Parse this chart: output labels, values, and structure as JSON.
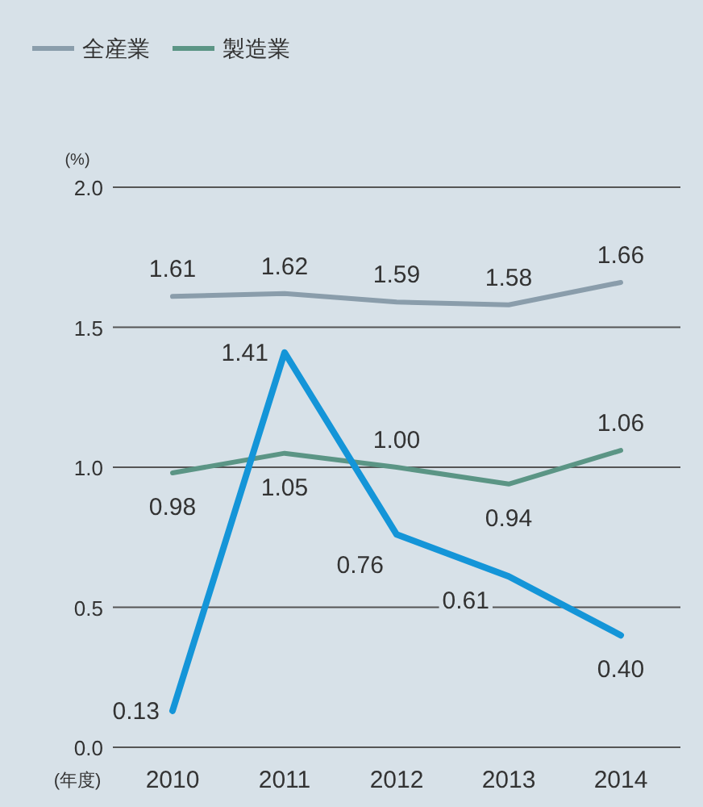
{
  "chart_data": {
    "type": "line",
    "ylabel": "(%)",
    "xlabel": "(年度)",
    "categories": [
      "2010",
      "2011",
      "2012",
      "2013",
      "2014"
    ],
    "series": [
      {
        "name": "全産業",
        "color": "#8a9dab",
        "values": [
          1.61,
          1.62,
          1.59,
          1.58,
          1.66
        ],
        "value_labels": [
          "1.61",
          "1.62",
          "1.59",
          "1.58",
          "1.66"
        ]
      },
      {
        "name": "製造業",
        "color": "#5b9585",
        "values": [
          0.98,
          1.05,
          1.0,
          0.94,
          1.06
        ],
        "value_labels": [
          "0.98",
          "1.05",
          "1.00",
          "0.94",
          "1.06"
        ]
      },
      {
        "color": "#1495d8",
        "values": [
          0.13,
          1.41,
          0.76,
          0.61,
          0.4
        ],
        "value_labels": [
          "0.13",
          "1.41",
          "0.76",
          "0.61",
          "0.40"
        ]
      }
    ],
    "ylim": [
      0,
      2
    ],
    "yticks": [
      {
        "value": 0,
        "label": "0.0"
      },
      0.5,
      {
        "value": 1,
        "label": "1.0"
      },
      1.5,
      {
        "value": 2,
        "label": "2.0"
      }
    ],
    "grid": "y",
    "legend": "top left",
    "marker": "none",
    "line_style": "solid"
  }
}
